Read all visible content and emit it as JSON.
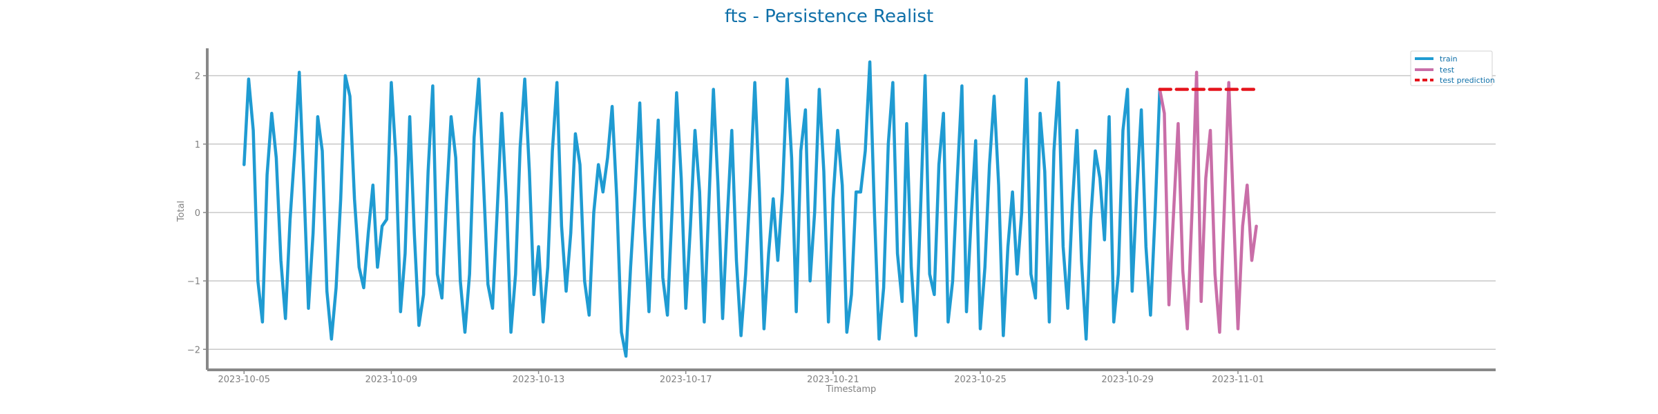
{
  "chart_data": {
    "type": "line",
    "title": "fts - Persistence Realist",
    "xlabel": "Timestamp",
    "ylabel": "Total",
    "xlim": [
      "2023-10-04",
      "2023-11-08"
    ],
    "ylim": [
      -2.3,
      2.4
    ],
    "x_ticks": [
      "2023-10-05",
      "2023-10-09",
      "2023-10-13",
      "2023-10-17",
      "2023-10-21",
      "2023-10-25",
      "2023-10-29",
      "2023-11-01"
    ],
    "y_ticks": [
      -2,
      -1,
      0,
      1,
      2
    ],
    "grid": "horizontal",
    "legend_position": "top-right",
    "colors": {
      "train": "#1f9bd2",
      "test": "#c96ea8",
      "prediction": "#e5141c",
      "title": "#0e6fa8",
      "axis": "#888888",
      "grid": "#c8c8c8"
    },
    "series": [
      {
        "name": "train",
        "style": "solid",
        "anchors": [
          [
            "2023-10-05",
            0.7
          ],
          [
            "2023-10-05T03:00",
            1.95
          ],
          [
            "2023-10-05T06:00",
            1.2
          ],
          [
            "2023-10-05T09:00",
            -1.0
          ],
          [
            "2023-10-05T12:00",
            -1.6
          ],
          [
            "2023-10-05T15:00",
            0.55
          ],
          [
            "2023-10-05T18:00",
            1.45
          ],
          [
            "2023-10-05T21:00",
            0.8
          ],
          [
            "2023-10-06",
            -0.7
          ],
          [
            "2023-10-06T03:00",
            -1.55
          ],
          [
            "2023-10-06T06:00",
            -0.1
          ],
          [
            "2023-10-06T09:00",
            0.9
          ],
          [
            "2023-10-06T12:00",
            2.05
          ],
          [
            "2023-10-06T15:00",
            0.4
          ],
          [
            "2023-10-06T18:00",
            -1.4
          ],
          [
            "2023-10-06T21:00",
            -0.3
          ],
          [
            "2023-10-07",
            1.4
          ],
          [
            "2023-10-07T03:00",
            0.9
          ],
          [
            "2023-10-07T06:00",
            -1.15
          ],
          [
            "2023-10-07T09:00",
            -1.85
          ],
          [
            "2023-10-07T12:00",
            -1.1
          ],
          [
            "2023-10-07T15:00",
            0.2
          ],
          [
            "2023-10-07T18:00",
            2.0
          ],
          [
            "2023-10-07T21:00",
            1.7
          ],
          [
            "2023-10-08",
            0.2
          ],
          [
            "2023-10-08T03:00",
            -0.8
          ],
          [
            "2023-10-08T06:00",
            -1.1
          ],
          [
            "2023-10-08T09:00",
            -0.3
          ],
          [
            "2023-10-08T12:00",
            0.4
          ],
          [
            "2023-10-08T15:00",
            -0.8
          ],
          [
            "2023-10-08T18:00",
            -0.2
          ],
          [
            "2023-10-08T21:00",
            -0.1
          ],
          [
            "2023-10-09",
            1.9
          ],
          [
            "2023-10-09T03:00",
            0.8
          ],
          [
            "2023-10-09T06:00",
            -1.45
          ],
          [
            "2023-10-09T09:00",
            -0.6
          ],
          [
            "2023-10-09T12:00",
            1.4
          ],
          [
            "2023-10-09T15:00",
            -0.3
          ],
          [
            "2023-10-09T18:00",
            -1.65
          ],
          [
            "2023-10-09T21:00",
            -1.2
          ],
          [
            "2023-10-10",
            0.6
          ],
          [
            "2023-10-10T03:00",
            1.85
          ],
          [
            "2023-10-10T06:00",
            -0.9
          ],
          [
            "2023-10-10T09:00",
            -1.25
          ],
          [
            "2023-10-10T12:00",
            0.2
          ],
          [
            "2023-10-10T15:00",
            1.4
          ],
          [
            "2023-10-10T18:00",
            0.8
          ],
          [
            "2023-10-10T21:00",
            -1.0
          ],
          [
            "2023-10-11",
            -1.75
          ],
          [
            "2023-10-11T03:00",
            -0.9
          ],
          [
            "2023-10-11T06:00",
            1.1
          ],
          [
            "2023-10-11T09:00",
            1.95
          ],
          [
            "2023-10-11T12:00",
            0.5
          ],
          [
            "2023-10-11T15:00",
            -1.05
          ],
          [
            "2023-10-11T18:00",
            -1.4
          ],
          [
            "2023-10-11T21:00",
            0.0
          ],
          [
            "2023-10-12",
            1.45
          ],
          [
            "2023-10-12T03:00",
            0.2
          ],
          [
            "2023-10-12T06:00",
            -1.75
          ],
          [
            "2023-10-12T09:00",
            -0.9
          ],
          [
            "2023-10-12T12:00",
            0.95
          ],
          [
            "2023-10-12T15:00",
            1.95
          ],
          [
            "2023-10-12T18:00",
            0.6
          ],
          [
            "2023-10-12T21:00",
            -1.2
          ],
          [
            "2023-10-13",
            -0.5
          ],
          [
            "2023-10-13T03:00",
            -1.6
          ],
          [
            "2023-10-13T06:00",
            -0.8
          ],
          [
            "2023-10-13T09:00",
            0.9
          ],
          [
            "2023-10-13T12:00",
            1.9
          ],
          [
            "2023-10-13T15:00",
            -0.2
          ],
          [
            "2023-10-13T18:00",
            -1.15
          ],
          [
            "2023-10-13T21:00",
            -0.3
          ],
          [
            "2023-10-14",
            1.15
          ],
          [
            "2023-10-14T03:00",
            0.7
          ],
          [
            "2023-10-14T06:00",
            -1.0
          ],
          [
            "2023-10-14T09:00",
            -1.5
          ],
          [
            "2023-10-14T12:00",
            0.0
          ],
          [
            "2023-10-14T15:00",
            0.7
          ],
          [
            "2023-10-14T18:00",
            0.3
          ],
          [
            "2023-10-14T21:00",
            0.8
          ],
          [
            "2023-10-15",
            1.55
          ],
          [
            "2023-10-15T03:00",
            0.2
          ],
          [
            "2023-10-15T06:00",
            -1.75
          ],
          [
            "2023-10-15T09:00",
            -2.1
          ],
          [
            "2023-10-15T12:00",
            -0.8
          ],
          [
            "2023-10-15T15:00",
            0.3
          ],
          [
            "2023-10-15T18:00",
            1.6
          ],
          [
            "2023-10-15T21:00",
            -0.2
          ],
          [
            "2023-10-16",
            -1.45
          ],
          [
            "2023-10-16T03:00",
            0.1
          ],
          [
            "2023-10-16T06:00",
            1.35
          ],
          [
            "2023-10-16T09:00",
            -0.95
          ],
          [
            "2023-10-16T12:00",
            -1.5
          ],
          [
            "2023-10-16T15:00",
            0.0
          ],
          [
            "2023-10-16T18:00",
            1.75
          ],
          [
            "2023-10-16T21:00",
            0.5
          ],
          [
            "2023-10-17",
            -1.4
          ],
          [
            "2023-10-17T03:00",
            -0.2
          ],
          [
            "2023-10-17T06:00",
            1.2
          ],
          [
            "2023-10-17T09:00",
            0.3
          ],
          [
            "2023-10-17T12:00",
            -1.6
          ],
          [
            "2023-10-17T15:00",
            0.1
          ],
          [
            "2023-10-17T18:00",
            1.8
          ],
          [
            "2023-10-17T21:00",
            0.4
          ],
          [
            "2023-10-18",
            -1.55
          ],
          [
            "2023-10-18T03:00",
            -0.1
          ],
          [
            "2023-10-18T06:00",
            1.2
          ],
          [
            "2023-10-18T09:00",
            -0.7
          ],
          [
            "2023-10-18T12:00",
            -1.8
          ],
          [
            "2023-10-18T15:00",
            -0.9
          ],
          [
            "2023-10-18T18:00",
            0.4
          ],
          [
            "2023-10-18T21:00",
            1.9
          ],
          [
            "2023-10-19",
            0.3
          ],
          [
            "2023-10-19T03:00",
            -1.7
          ],
          [
            "2023-10-19T06:00",
            -0.6
          ],
          [
            "2023-10-19T09:00",
            0.2
          ],
          [
            "2023-10-19T12:00",
            -0.7
          ],
          [
            "2023-10-19T15:00",
            0.3
          ],
          [
            "2023-10-19T18:00",
            1.95
          ],
          [
            "2023-10-19T21:00",
            0.8
          ],
          [
            "2023-10-20",
            -1.45
          ],
          [
            "2023-10-20T03:00",
            0.9
          ],
          [
            "2023-10-20T06:00",
            1.5
          ],
          [
            "2023-10-20T09:00",
            -1.0
          ],
          [
            "2023-10-20T12:00",
            0.0
          ],
          [
            "2023-10-20T15:00",
            1.8
          ],
          [
            "2023-10-20T18:00",
            0.6
          ],
          [
            "2023-10-20T21:00",
            -1.6
          ],
          [
            "2023-10-21",
            0.2
          ],
          [
            "2023-10-21T03:00",
            1.2
          ],
          [
            "2023-10-21T06:00",
            0.4
          ],
          [
            "2023-10-21T09:00",
            -1.75
          ],
          [
            "2023-10-21T12:00",
            -1.2
          ],
          [
            "2023-10-21T15:00",
            0.3
          ],
          [
            "2023-10-21T18:00",
            0.3
          ],
          [
            "2023-10-21T21:00",
            0.9
          ],
          [
            "2023-10-22",
            2.2
          ],
          [
            "2023-10-22T03:00",
            0.0
          ],
          [
            "2023-10-22T06:00",
            -1.85
          ],
          [
            "2023-10-22T09:00",
            -1.1
          ],
          [
            "2023-10-22T12:00",
            1.0
          ],
          [
            "2023-10-22T15:00",
            1.9
          ],
          [
            "2023-10-22T18:00",
            -0.6
          ],
          [
            "2023-10-22T21:00",
            -1.3
          ],
          [
            "2023-10-23",
            1.3
          ],
          [
            "2023-10-23T03:00",
            -0.8
          ],
          [
            "2023-10-23T06:00",
            -1.8
          ],
          [
            "2023-10-23T09:00",
            0.0
          ],
          [
            "2023-10-23T12:00",
            2.0
          ],
          [
            "2023-10-23T15:00",
            -0.9
          ],
          [
            "2023-10-23T18:00",
            -1.2
          ],
          [
            "2023-10-23T21:00",
            0.7
          ],
          [
            "2023-10-24",
            1.45
          ],
          [
            "2023-10-24T03:00",
            -1.6
          ],
          [
            "2023-10-24T06:00",
            -1.0
          ],
          [
            "2023-10-24T09:00",
            0.5
          ],
          [
            "2023-10-24T12:00",
            1.85
          ],
          [
            "2023-10-24T15:00",
            -1.45
          ],
          [
            "2023-10-24T18:00",
            -0.1
          ],
          [
            "2023-10-24T21:00",
            1.05
          ],
          [
            "2023-10-25",
            -1.7
          ],
          [
            "2023-10-25T03:00",
            -0.8
          ],
          [
            "2023-10-25T06:00",
            0.7
          ],
          [
            "2023-10-25T09:00",
            1.7
          ],
          [
            "2023-10-25T12:00",
            0.4
          ],
          [
            "2023-10-25T15:00",
            -1.8
          ],
          [
            "2023-10-25T18:00",
            -0.5
          ],
          [
            "2023-10-25T21:00",
            0.3
          ],
          [
            "2023-10-26",
            -0.9
          ],
          [
            "2023-10-26T03:00",
            0.0
          ],
          [
            "2023-10-26T06:00",
            1.95
          ],
          [
            "2023-10-26T09:00",
            -0.9
          ],
          [
            "2023-10-26T12:00",
            -1.25
          ],
          [
            "2023-10-26T15:00",
            1.45
          ],
          [
            "2023-10-26T18:00",
            0.6
          ],
          [
            "2023-10-26T21:00",
            -1.6
          ],
          [
            "2023-10-27",
            0.9
          ],
          [
            "2023-10-27T03:00",
            1.9
          ],
          [
            "2023-10-27T06:00",
            -0.5
          ],
          [
            "2023-10-27T09:00",
            -1.4
          ],
          [
            "2023-10-27T12:00",
            0.1
          ],
          [
            "2023-10-27T15:00",
            1.2
          ],
          [
            "2023-10-27T18:00",
            -0.7
          ],
          [
            "2023-10-27T21:00",
            -1.85
          ],
          [
            "2023-10-28",
            -0.1
          ],
          [
            "2023-10-28T03:00",
            0.9
          ],
          [
            "2023-10-28T06:00",
            0.5
          ],
          [
            "2023-10-28T09:00",
            -0.4
          ],
          [
            "2023-10-28T12:00",
            1.4
          ],
          [
            "2023-10-28T15:00",
            -1.6
          ],
          [
            "2023-10-28T18:00",
            -0.9
          ],
          [
            "2023-10-28T21:00",
            1.2
          ],
          [
            "2023-10-29",
            1.8
          ],
          [
            "2023-10-29T03:00",
            -1.15
          ],
          [
            "2023-10-29T06:00",
            0.3
          ],
          [
            "2023-10-29T09:00",
            1.5
          ],
          [
            "2023-10-29T12:00",
            -0.5
          ],
          [
            "2023-10-29T15:00",
            -1.5
          ],
          [
            "2023-10-29T18:00",
            0.0
          ],
          [
            "2023-10-29T21:00",
            1.8
          ]
        ]
      },
      {
        "name": "test",
        "style": "solid",
        "anchors": [
          [
            "2023-10-29T21:00",
            1.8
          ],
          [
            "2023-10-30",
            1.45
          ],
          [
            "2023-10-30T03:00",
            -1.35
          ],
          [
            "2023-10-30T06:00",
            0.0
          ],
          [
            "2023-10-30T09:00",
            1.3
          ],
          [
            "2023-10-30T12:00",
            -0.85
          ],
          [
            "2023-10-30T15:00",
            -1.7
          ],
          [
            "2023-10-30T18:00",
            0.0
          ],
          [
            "2023-10-30T21:00",
            2.05
          ],
          [
            "2023-10-31",
            -1.3
          ],
          [
            "2023-10-31T03:00",
            0.5
          ],
          [
            "2023-10-31T06:00",
            1.2
          ],
          [
            "2023-10-31T09:00",
            -0.9
          ],
          [
            "2023-10-31T12:00",
            -1.75
          ],
          [
            "2023-10-31T15:00",
            0.0
          ],
          [
            "2023-10-31T18:00",
            1.9
          ],
          [
            "2023-10-31T21:00",
            0.1
          ],
          [
            "2023-11-01",
            -1.7
          ],
          [
            "2023-11-01T03:00",
            -0.2
          ],
          [
            "2023-11-01T06:00",
            0.4
          ],
          [
            "2023-11-01T09:00",
            -0.7
          ],
          [
            "2023-11-01T12:00",
            -0.2
          ]
        ]
      },
      {
        "name": "test prediction",
        "style": "dashed",
        "anchors": [
          [
            "2023-10-29T21:00",
            1.8
          ],
          [
            "2023-11-01T12:00",
            1.8
          ]
        ]
      }
    ],
    "legend": [
      "train",
      "test",
      "test prediction"
    ]
  }
}
